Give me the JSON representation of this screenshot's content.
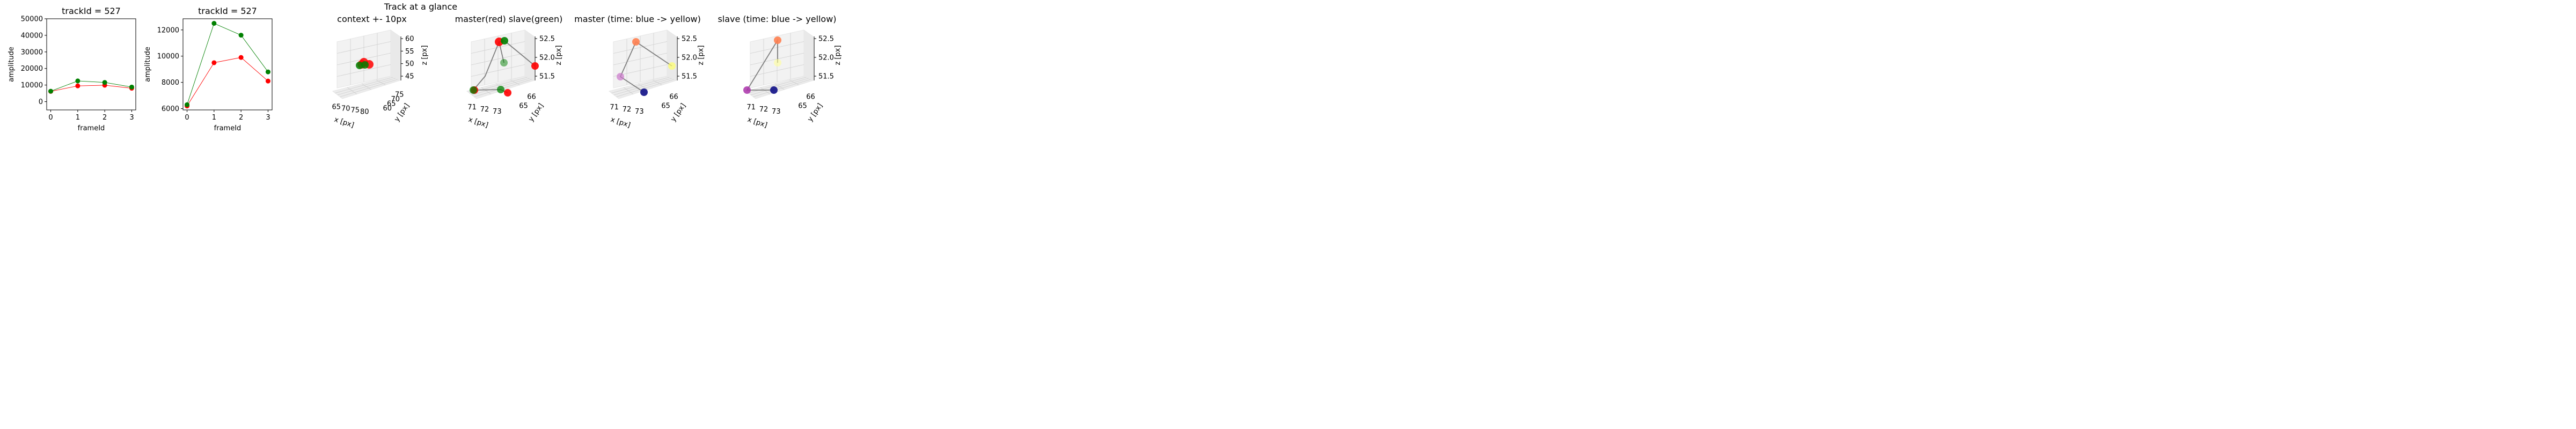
{
  "suptitle": "Track at a glance",
  "chart_data": [
    {
      "type": "line",
      "title": "trackId = 527",
      "xlabel": "frameId",
      "ylabel": "amplitude",
      "x": [
        0,
        1,
        2,
        3
      ],
      "xlim": [
        -0.15,
        3.15
      ],
      "ylim": [
        -5000,
        50000
      ],
      "yticks": [
        0,
        10000,
        20000,
        30000,
        40000,
        50000
      ],
      "xticks": [
        0,
        1,
        2,
        3
      ],
      "series": [
        {
          "color": "#ff0000",
          "values": [
            6200,
            9500,
            9900,
            8100
          ]
        },
        {
          "color": "#008000",
          "values": [
            6300,
            12500,
            11600,
            8800
          ]
        }
      ]
    },
    {
      "type": "line",
      "title": "trackId = 527",
      "xlabel": "frameId",
      "ylabel": "amplitude",
      "x": [
        0,
        1,
        2,
        3
      ],
      "xlim": [
        -0.15,
        3.15
      ],
      "ylim": [
        5900,
        12850
      ],
      "yticks": [
        6000,
        8000,
        10000,
        12000
      ],
      "xticks": [
        0,
        1,
        2,
        3
      ],
      "series": [
        {
          "color": "#ff0000",
          "values": [
            6200,
            9500,
            9900,
            8100
          ]
        },
        {
          "color": "#008000",
          "values": [
            6300,
            12500,
            11600,
            8800
          ]
        }
      ]
    },
    {
      "type": "scatter3d",
      "title": "context +- 10px",
      "xlabel": "x [px]",
      "ylabel": "y [px]",
      "zlabel": "z [px]",
      "xticks": [
        "65",
        "70",
        "75",
        "80"
      ],
      "yticks": [
        "60",
        "65",
        "70",
        "75"
      ],
      "zticks": [
        "45",
        "50",
        "55",
        "60"
      ],
      "points": [
        {
          "x": 72,
          "y": 66,
          "z": 52,
          "color": "#ff0000"
        },
        {
          "x": 73,
          "y": 65,
          "z": 51.5,
          "color": "#ff0000"
        },
        {
          "x": 73,
          "y": 66,
          "z": 52.5,
          "color": "#ff0000"
        },
        {
          "x": 71,
          "y": 65,
          "z": 51.5,
          "color": "#008000"
        },
        {
          "x": 72,
          "y": 65,
          "z": 52,
          "color": "#008000"
        }
      ]
    },
    {
      "type": "scatter3d",
      "title": "master(red) slave(green)",
      "xlabel": "x [px]",
      "ylabel": "y [px]",
      "zlabel": "z [px]",
      "xticks": [
        "71",
        "72",
        "73"
      ],
      "yticks": [
        "65",
        "66"
      ],
      "zticks": [
        "51.5",
        "52.0",
        "52.5"
      ],
      "points": [
        {
          "x": 71,
          "y": 65,
          "z": 51.5,
          "color": "#ff0000"
        },
        {
          "x": 72.5,
          "y": 66,
          "z": 52.5,
          "color": "#ff0000"
        },
        {
          "x": 73,
          "y": 65,
          "z": 51.5,
          "color": "#ff0000"
        },
        {
          "x": 73,
          "y": 66,
          "z": 52,
          "color": "#ff0000"
        },
        {
          "x": 71,
          "y": 65,
          "z": 51.5,
          "color": "#008000"
        },
        {
          "x": 72.5,
          "y": 66,
          "z": 52.5,
          "color": "#008000"
        },
        {
          "x": 73,
          "y": 65,
          "z": 51.5,
          "color": "#008000"
        },
        {
          "x": 72.8,
          "y": 66,
          "z": 52,
          "color": "#008000"
        }
      ]
    },
    {
      "type": "scatter3d",
      "title": "master (time: blue -> yellow)",
      "xlabel": "x [px]",
      "ylabel": "y [px]",
      "zlabel": "z [px]",
      "xticks": [
        "71",
        "72",
        "73"
      ],
      "yticks": [
        "65",
        "66"
      ],
      "zticks": [
        "51.5",
        "52.0",
        "52.5"
      ],
      "points": [
        {
          "x": 73,
          "y": 65,
          "z": 51.5,
          "color": "#1a1a8c"
        },
        {
          "x": 71,
          "y": 65,
          "z": 51.5,
          "color": "#cc77cc"
        },
        {
          "x": 72.5,
          "y": 66,
          "z": 52.5,
          "color": "#ff7f50"
        },
        {
          "x": 73,
          "y": 66,
          "z": 52,
          "color": "#ffff66"
        }
      ]
    },
    {
      "type": "scatter3d",
      "title": "slave (time: blue -> yellow)",
      "xlabel": "x [px]",
      "ylabel": "y [px]",
      "zlabel": "z [px]",
      "xticks": [
        "71",
        "72",
        "73"
      ],
      "yticks": [
        "65",
        "66"
      ],
      "zticks": [
        "51.5",
        "52.0",
        "52.5"
      ],
      "points": [
        {
          "x": 73,
          "y": 65,
          "z": 51.5,
          "color": "#1a1a8c"
        },
        {
          "x": 71,
          "y": 65,
          "z": 51.5,
          "color": "#aa33aa"
        },
        {
          "x": 72.5,
          "y": 66,
          "z": 52.5,
          "color": "#ff7f50"
        },
        {
          "x": 72.8,
          "y": 66,
          "z": 52,
          "color": "#ffff99"
        }
      ]
    }
  ]
}
